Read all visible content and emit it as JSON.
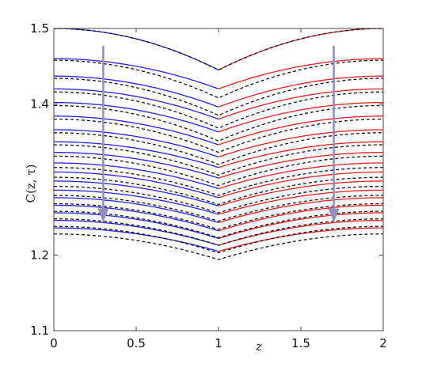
{
  "chart_data": {
    "type": "line",
    "xlabel": "z",
    "ylabel": "C(z, τ)",
    "xlim": [
      0,
      2
    ],
    "ylim": [
      1.1,
      1.5
    ],
    "xticks": [
      0,
      0.5,
      1,
      1.5,
      2
    ],
    "xtick_labels": [
      "0",
      "0.5",
      "1",
      "1.5",
      "2"
    ],
    "yticks": [
      1.1,
      1.2,
      1.4,
      1.5
    ],
    "ytick_labels": [
      "1.1",
      "1.2",
      "1.4",
      "1.5"
    ],
    "grid": false,
    "legend": "none",
    "colors": {
      "left_solid": "#1f22ee",
      "right_solid": "#ee1c1c",
      "dashed": "#111111",
      "arrow": "#8f8fbf"
    },
    "series_shape": {
      "x_range": [
        0,
        2
      ],
      "cusp_x": 1,
      "profile": "symmetric concave-down, minimum (cusp) at z = 1"
    },
    "solid_series": [
      {
        "edge": 1.5,
        "center": 1.445
      },
      {
        "edge": 1.46,
        "center": 1.42
      },
      {
        "edge": 1.437,
        "center": 1.396
      },
      {
        "edge": 1.42,
        "center": 1.38
      },
      {
        "edge": 1.402,
        "center": 1.363
      },
      {
        "edge": 1.384,
        "center": 1.346
      },
      {
        "edge": 1.366,
        "center": 1.33
      },
      {
        "edge": 1.35,
        "center": 1.316
      },
      {
        "edge": 1.336,
        "center": 1.302
      },
      {
        "edge": 1.322,
        "center": 1.288
      },
      {
        "edge": 1.31,
        "center": 1.276
      },
      {
        "edge": 1.298,
        "center": 1.265
      },
      {
        "edge": 1.286,
        "center": 1.254
      },
      {
        "edge": 1.276,
        "center": 1.243
      },
      {
        "edge": 1.266,
        "center": 1.232
      },
      {
        "edge": 1.256,
        "center": 1.222
      },
      {
        "edge": 1.246,
        "center": 1.213
      },
      {
        "edge": 1.236,
        "center": 1.205
      }
    ],
    "dashed_series": [
      {
        "edge": 1.5,
        "center": 1.445
      },
      {
        "edge": 1.458,
        "center": 1.408
      },
      {
        "edge": 1.434,
        "center": 1.385
      },
      {
        "edge": 1.416,
        "center": 1.368
      },
      {
        "edge": 1.398,
        "center": 1.351
      },
      {
        "edge": 1.38,
        "center": 1.336
      },
      {
        "edge": 1.362,
        "center": 1.32
      },
      {
        "edge": 1.346,
        "center": 1.306
      },
      {
        "edge": 1.331,
        "center": 1.292
      },
      {
        "edge": 1.316,
        "center": 1.279
      },
      {
        "edge": 1.303,
        "center": 1.267
      },
      {
        "edge": 1.291,
        "center": 1.256
      },
      {
        "edge": 1.279,
        "center": 1.245
      },
      {
        "edge": 1.268,
        "center": 1.234
      },
      {
        "edge": 1.258,
        "center": 1.223
      },
      {
        "edge": 1.248,
        "center": 1.213
      },
      {
        "edge": 1.238,
        "center": 1.203
      },
      {
        "edge": 1.228,
        "center": 1.194
      }
    ],
    "annotations": [
      {
        "type": "arrow",
        "x": 0.3,
        "y_from": 1.477,
        "y_to": 1.245
      },
      {
        "type": "arrow",
        "x": 1.7,
        "y_from": 1.477,
        "y_to": 1.245
      }
    ]
  }
}
